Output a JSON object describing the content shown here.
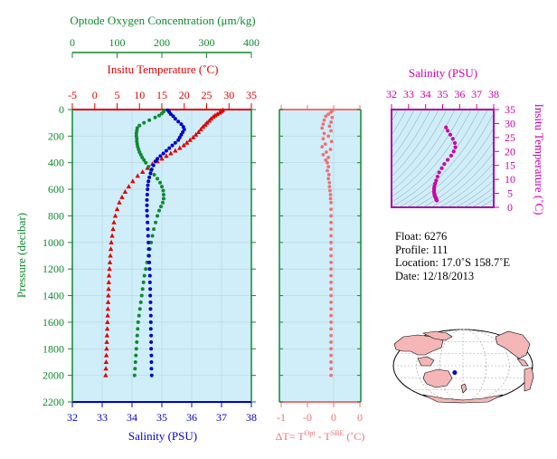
{
  "chart_data": [
    {
      "type": "scatter",
      "name": "profile",
      "ylabel": "Pressure (decibar)",
      "ylim": [
        0,
        2200
      ],
      "y_ticks": [
        0,
        200,
        400,
        600,
        800,
        1000,
        1200,
        1400,
        1600,
        1800,
        2000,
        2200
      ],
      "axes": {
        "oxygen": {
          "label": "Optode Oxygen Concentration (μm/kg)",
          "range": [
            0,
            400
          ],
          "ticks": [
            0,
            100,
            200,
            300,
            400
          ],
          "color": "#0e8a2e"
        },
        "temperature": {
          "label": "Insitu Temperature (˚C)",
          "range": [
            -5,
            35
          ],
          "ticks": [
            -5,
            0,
            5,
            10,
            15,
            20,
            25,
            30,
            35
          ],
          "color": "#e00000"
        },
        "salinity": {
          "label": "Salinity (PSU)",
          "range": [
            32,
            38
          ],
          "ticks": [
            32,
            33,
            34,
            35,
            36,
            37,
            38
          ],
          "color": "#0000cc"
        }
      },
      "series": [
        {
          "name": "Temperature",
          "axis": "temperature",
          "marker": "triangle",
          "color": "#e00000",
          "points": [
            [
              28.6,
              5
            ],
            [
              28.3,
              15
            ],
            [
              27.9,
              25
            ],
            [
              27.4,
              35
            ],
            [
              26.9,
              45
            ],
            [
              26.5,
              55
            ],
            [
              26.0,
              70
            ],
            [
              25.6,
              85
            ],
            [
              25.1,
              100
            ],
            [
              24.7,
              115
            ],
            [
              24.2,
              130
            ],
            [
              23.7,
              150
            ],
            [
              23.2,
              170
            ],
            [
              22.6,
              190
            ],
            [
              22.0,
              210
            ],
            [
              21.3,
              230
            ],
            [
              20.6,
              250
            ],
            [
              19.9,
              270
            ],
            [
              19.0,
              290
            ],
            [
              18.0,
              310
            ],
            [
              17.0,
              330
            ],
            [
              16.0,
              350
            ],
            [
              15.0,
              370
            ],
            [
              14.0,
              390
            ],
            [
              12.9,
              410
            ],
            [
              11.8,
              440
            ],
            [
              10.7,
              470
            ],
            [
              9.6,
              500
            ],
            [
              8.5,
              540
            ],
            [
              7.6,
              580
            ],
            [
              6.8,
              620
            ],
            [
              6.1,
              660
            ],
            [
              5.5,
              700
            ],
            [
              5.0,
              750
            ],
            [
              4.6,
              800
            ],
            [
              4.3,
              850
            ],
            [
              4.1,
              900
            ],
            [
              3.9,
              950
            ],
            [
              3.7,
              1000
            ],
            [
              3.6,
              1050
            ],
            [
              3.5,
              1100
            ],
            [
              3.4,
              1150
            ],
            [
              3.3,
              1200
            ],
            [
              3.2,
              1250
            ],
            [
              3.15,
              1300
            ],
            [
              3.1,
              1350
            ],
            [
              3.05,
              1400
            ],
            [
              3.0,
              1450
            ],
            [
              2.95,
              1500
            ],
            [
              2.9,
              1550
            ],
            [
              2.85,
              1600
            ],
            [
              2.8,
              1650
            ],
            [
              2.75,
              1700
            ],
            [
              2.7,
              1750
            ],
            [
              2.65,
              1800
            ],
            [
              2.6,
              1850
            ],
            [
              2.55,
              1900
            ],
            [
              2.5,
              1950
            ],
            [
              2.45,
              2000
            ]
          ]
        },
        {
          "name": "Oxygen",
          "axis": "oxygen",
          "marker": "dot",
          "color": "#0e8a2e",
          "points": [
            [
              205,
              5
            ],
            [
              204,
              15
            ],
            [
              200,
              30
            ],
            [
              194,
              45
            ],
            [
              185,
              60
            ],
            [
              172,
              80
            ],
            [
              160,
              100
            ],
            [
              150,
              120
            ],
            [
              145,
              140
            ],
            [
              144,
              160
            ],
            [
              143,
              180
            ],
            [
              143,
              200
            ],
            [
              144,
              220
            ],
            [
              144,
              240
            ],
            [
              145,
              260
            ],
            [
              146,
              280
            ],
            [
              148,
              300
            ],
            [
              150,
              320
            ],
            [
              153,
              340
            ],
            [
              156,
              360
            ],
            [
              160,
              380
            ],
            [
              164,
              400
            ],
            [
              170,
              430
            ],
            [
              176,
              460
            ],
            [
              183,
              490
            ],
            [
              190,
              520
            ],
            [
              196,
              550
            ],
            [
              200,
              580
            ],
            [
              203,
              610
            ],
            [
              204,
              640
            ],
            [
              204,
              670
            ],
            [
              202,
              700
            ],
            [
              198,
              730
            ],
            [
              194,
              760
            ],
            [
              190,
              800
            ],
            [
              186,
              850
            ],
            [
              182,
              900
            ],
            [
              179,
              950
            ],
            [
              176,
              1000
            ],
            [
              173,
              1050
            ],
            [
              170,
              1100
            ],
            [
              167,
              1150
            ],
            [
              164,
              1200
            ],
            [
              161,
              1250
            ],
            [
              159,
              1300
            ],
            [
              157,
              1350
            ],
            [
              155,
              1400
            ],
            [
              153,
              1450
            ],
            [
              151,
              1500
            ],
            [
              149,
              1550
            ],
            [
              147,
              1600
            ],
            [
              146,
              1650
            ],
            [
              145,
              1700
            ],
            [
              144,
              1750
            ],
            [
              143,
              1800
            ],
            [
              142,
              1850
            ],
            [
              141,
              1900
            ],
            [
              140,
              1950
            ],
            [
              139,
              2000
            ]
          ]
        },
        {
          "name": "Salinity",
          "axis": "salinity",
          "marker": "dot",
          "color": "#0000cc",
          "points": [
            [
              35.2,
              5
            ],
            [
              35.25,
              20
            ],
            [
              35.3,
              35
            ],
            [
              35.38,
              50
            ],
            [
              35.45,
              70
            ],
            [
              35.55,
              90
            ],
            [
              35.65,
              110
            ],
            [
              35.72,
              130
            ],
            [
              35.75,
              150
            ],
            [
              35.7,
              170
            ],
            [
              35.65,
              190
            ],
            [
              35.6,
              210
            ],
            [
              35.55,
              230
            ],
            [
              35.45,
              250
            ],
            [
              35.35,
              270
            ],
            [
              35.25,
              290
            ],
            [
              35.15,
              310
            ],
            [
              35.05,
              330
            ],
            [
              34.95,
              350
            ],
            [
              34.85,
              370
            ],
            [
              34.78,
              390
            ],
            [
              34.72,
              420
            ],
            [
              34.66,
              450
            ],
            [
              34.62,
              480
            ],
            [
              34.58,
              510
            ],
            [
              34.55,
              540
            ],
            [
              34.53,
              570
            ],
            [
              34.52,
              600
            ],
            [
              34.51,
              640
            ],
            [
              34.5,
              680
            ],
            [
              34.5,
              720
            ],
            [
              34.5,
              760
            ],
            [
              34.51,
              800
            ],
            [
              34.52,
              850
            ],
            [
              34.53,
              900
            ],
            [
              34.54,
              950
            ],
            [
              34.55,
              1000
            ],
            [
              34.56,
              1050
            ],
            [
              34.57,
              1100
            ],
            [
              34.58,
              1150
            ],
            [
              34.59,
              1200
            ],
            [
              34.6,
              1250
            ],
            [
              34.6,
              1300
            ],
            [
              34.61,
              1350
            ],
            [
              34.61,
              1400
            ],
            [
              34.62,
              1450
            ],
            [
              34.62,
              1500
            ],
            [
              34.63,
              1550
            ],
            [
              34.63,
              1600
            ],
            [
              34.63,
              1650
            ],
            [
              34.64,
              1700
            ],
            [
              34.64,
              1750
            ],
            [
              34.64,
              1800
            ],
            [
              34.65,
              1850
            ],
            [
              34.65,
              1900
            ],
            [
              34.65,
              1950
            ],
            [
              34.66,
              2000
            ]
          ]
        }
      ]
    },
    {
      "type": "scatter",
      "name": "delta-t",
      "xlabel": "ΔT= T°ᵖᵗ - Tˢᴮᴱ (˚C)",
      "xlabel_parts": {
        "a": "ΔT= T",
        "sup1": "Opt",
        "b": " - T",
        "sup2": "SBE",
        "c": " (˚C)"
      },
      "xlim": [
        -1,
        0
      ],
      "x_ticks": [
        -1,
        -0.5,
        0,
        0.5
      ],
      "x_tick_labels": [
        "-1",
        "-0",
        "0",
        "0"
      ],
      "ylim": [
        0,
        2200
      ],
      "color": "#f07070",
      "points": [
        [
          -0.02,
          5
        ],
        [
          -0.05,
          20
        ],
        [
          -0.1,
          35
        ],
        [
          -0.15,
          50
        ],
        [
          -0.03,
          60
        ],
        [
          -0.18,
          80
        ],
        [
          -0.05,
          95
        ],
        [
          -0.2,
          110
        ],
        [
          -0.08,
          125
        ],
        [
          -0.22,
          140
        ],
        [
          -0.05,
          160
        ],
        [
          -0.18,
          180
        ],
        [
          -0.1,
          200
        ],
        [
          -0.2,
          220
        ],
        [
          -0.04,
          240
        ],
        [
          -0.16,
          260
        ],
        [
          -0.22,
          280
        ],
        [
          -0.06,
          300
        ],
        [
          -0.14,
          320
        ],
        [
          -0.2,
          340
        ],
        [
          -0.1,
          360
        ],
        [
          -0.15,
          380
        ],
        [
          -0.12,
          400
        ],
        [
          -0.1,
          430
        ],
        [
          -0.12,
          460
        ],
        [
          -0.09,
          490
        ],
        [
          -0.1,
          520
        ],
        [
          -0.08,
          550
        ],
        [
          -0.08,
          580
        ],
        [
          -0.07,
          610
        ],
        [
          -0.06,
          640
        ],
        [
          -0.06,
          670
        ],
        [
          -0.05,
          700
        ],
        [
          -0.05,
          750
        ],
        [
          -0.05,
          800
        ],
        [
          -0.05,
          850
        ],
        [
          -0.05,
          900
        ],
        [
          -0.05,
          950
        ],
        [
          -0.05,
          1000
        ],
        [
          -0.05,
          1050
        ],
        [
          -0.05,
          1100
        ],
        [
          -0.05,
          1150
        ],
        [
          -0.05,
          1200
        ],
        [
          -0.05,
          1250
        ],
        [
          -0.05,
          1300
        ],
        [
          -0.05,
          1350
        ],
        [
          -0.05,
          1400
        ],
        [
          -0.05,
          1450
        ],
        [
          -0.05,
          1500
        ],
        [
          -0.05,
          1550
        ],
        [
          -0.05,
          1600
        ],
        [
          -0.05,
          1650
        ],
        [
          -0.05,
          1700
        ],
        [
          -0.05,
          1750
        ],
        [
          -0.05,
          1800
        ],
        [
          -0.05,
          1850
        ],
        [
          -0.05,
          1900
        ],
        [
          -0.05,
          1950
        ],
        [
          -0.05,
          2000
        ]
      ]
    },
    {
      "type": "scatter",
      "name": "ts-diagram",
      "xlabel": "Salinity (PSU)",
      "ylabel": "Insitu Temperature (˚C)",
      "xlim": [
        32,
        38
      ],
      "ylim": [
        0,
        35
      ],
      "x_ticks": [
        32,
        33,
        34,
        35,
        36,
        37,
        38
      ],
      "y_ticks": [
        0,
        5,
        10,
        15,
        20,
        25,
        30,
        35
      ],
      "color": "#cc00aa",
      "points": [
        [
          35.2,
          28.6
        ],
        [
          35.3,
          27.4
        ],
        [
          35.45,
          26.0
        ],
        [
          35.6,
          24.5
        ],
        [
          35.72,
          23.0
        ],
        [
          35.75,
          21.5
        ],
        [
          35.65,
          20.0
        ],
        [
          35.5,
          18.5
        ],
        [
          35.3,
          17.0
        ],
        [
          35.1,
          15.5
        ],
        [
          34.95,
          14.0
        ],
        [
          34.8,
          12.5
        ],
        [
          34.7,
          11.0
        ],
        [
          34.62,
          9.6
        ],
        [
          34.56,
          8.5
        ],
        [
          34.52,
          7.6
        ],
        [
          34.5,
          6.8
        ],
        [
          34.5,
          6.1
        ],
        [
          34.5,
          5.5
        ],
        [
          34.51,
          5.0
        ],
        [
          34.52,
          4.6
        ],
        [
          34.53,
          4.3
        ],
        [
          34.55,
          4.0
        ],
        [
          34.57,
          3.7
        ],
        [
          34.59,
          3.5
        ],
        [
          34.6,
          3.3
        ],
        [
          34.61,
          3.15
        ],
        [
          34.62,
          3.0
        ],
        [
          34.63,
          2.85
        ],
        [
          34.64,
          2.7
        ],
        [
          34.65,
          2.6
        ],
        [
          34.66,
          2.45
        ]
      ]
    }
  ],
  "info": {
    "float": "Float:  6276",
    "profile": "Profile:  111",
    "location": "Location:  17.0˚S  158.7˚E",
    "date": "Date:  12/18/2013"
  },
  "map": {
    "lat": -17.0,
    "lon": 158.7,
    "marker_color": "#0000cc"
  },
  "colors": {
    "panel_bg": "#cfeefa",
    "deltaT": "#f07070",
    "ts": "#cc00aa",
    "ts_frame": "#aa00aa"
  }
}
